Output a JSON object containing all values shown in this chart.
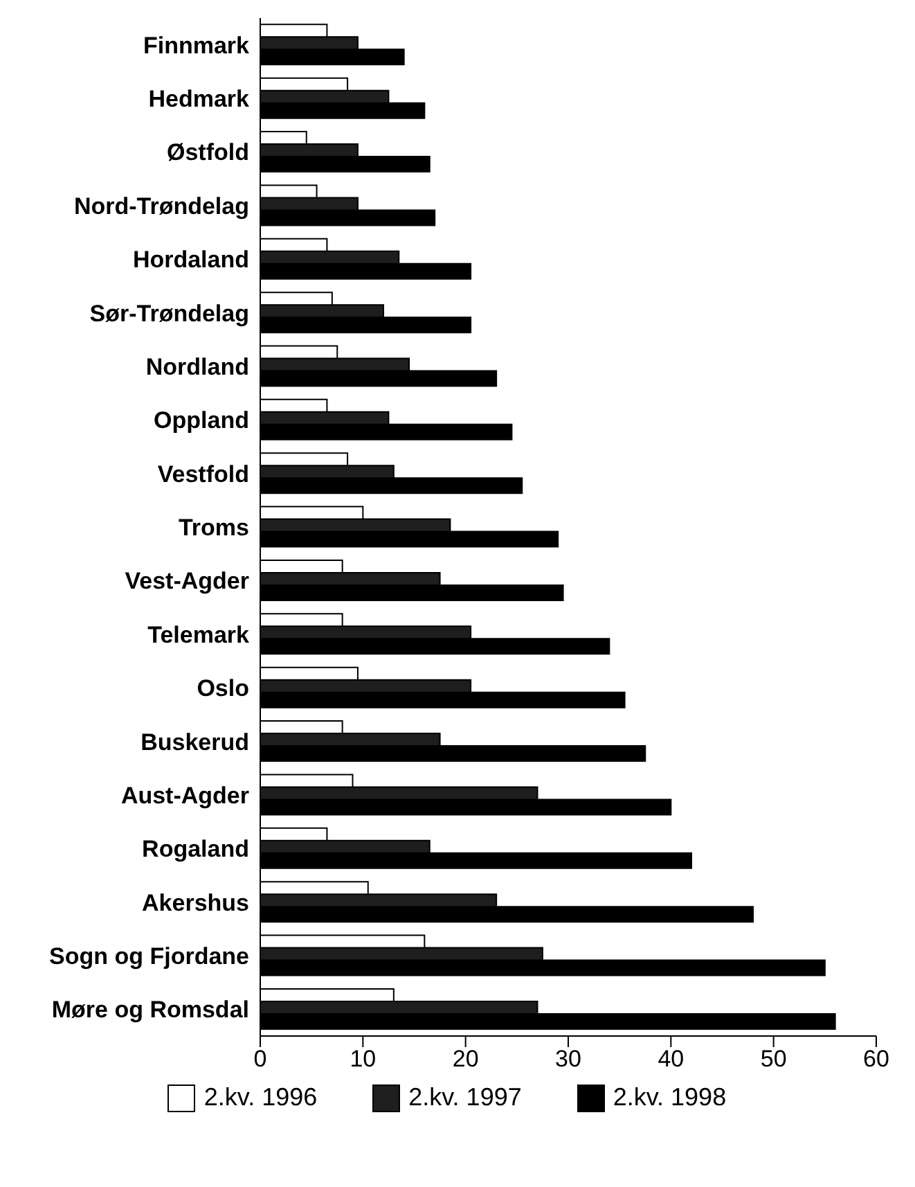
{
  "chart_data": {
    "type": "bar",
    "orientation": "horizontal",
    "categories": [
      "Finnmark",
      "Hedmark",
      "Østfold",
      "Nord-Trøndelag",
      "Hordaland",
      "Sør-Trøndelag",
      "Nordland",
      "Oppland",
      "Vestfold",
      "Troms",
      "Vest-Agder",
      "Telemark",
      "Oslo",
      "Buskerud",
      "Aust-Agder",
      "Rogaland",
      "Akershus",
      "Sogn og Fjordane",
      "Møre og Romsdal"
    ],
    "series": [
      {
        "name": "2.kv. 1996",
        "color": "#ffffff",
        "values": [
          6.5,
          8.5,
          4.5,
          5.5,
          6.5,
          7,
          7.5,
          6.5,
          8.5,
          10,
          8,
          8,
          9.5,
          8,
          9,
          6.5,
          10.5,
          16,
          13
        ]
      },
      {
        "name": "2.kv. 1997",
        "color": "#1e1e1e",
        "values": [
          9.5,
          12.5,
          9.5,
          9.5,
          13.5,
          12,
          14.5,
          12.5,
          13,
          18.5,
          17.5,
          20.5,
          20.5,
          17.5,
          27,
          16.5,
          23,
          27.5,
          27
        ]
      },
      {
        "name": "2.kv. 1998",
        "color": "#000000",
        "values": [
          14,
          16,
          16.5,
          17,
          20.5,
          20.5,
          23,
          24.5,
          25.5,
          29,
          29.5,
          34,
          35.5,
          37.5,
          40,
          42,
          48,
          55,
          56
        ]
      }
    ],
    "xlim": [
      0,
      60
    ],
    "xticks": [
      0,
      10,
      20,
      30,
      40,
      50,
      60
    ],
    "grid": false,
    "legend": "bottom"
  }
}
